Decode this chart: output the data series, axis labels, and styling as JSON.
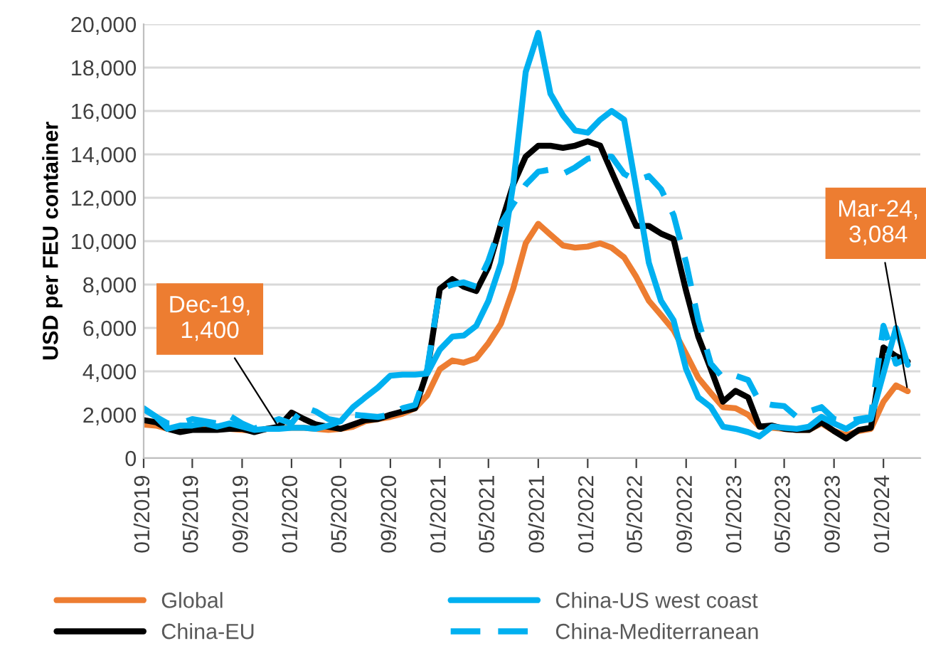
{
  "chart_data": {
    "type": "line",
    "ylabel": "USD per FEU container",
    "x": [
      "2019-01",
      "2019-02",
      "2019-03",
      "2019-04",
      "2019-05",
      "2019-06",
      "2019-07",
      "2019-08",
      "2019-09",
      "2019-10",
      "2019-11",
      "2019-12",
      "2020-01",
      "2020-02",
      "2020-03",
      "2020-04",
      "2020-05",
      "2020-06",
      "2020-07",
      "2020-08",
      "2020-09",
      "2020-10",
      "2020-11",
      "2020-12",
      "2021-01",
      "2021-02",
      "2021-03",
      "2021-04",
      "2021-05",
      "2021-06",
      "2021-07",
      "2021-08",
      "2021-09",
      "2021-10",
      "2021-11",
      "2021-12",
      "2022-01",
      "2022-02",
      "2022-03",
      "2022-04",
      "2022-05",
      "2022-06",
      "2022-07",
      "2022-08",
      "2022-09",
      "2022-10",
      "2022-11",
      "2022-12",
      "2023-01",
      "2023-02",
      "2023-03",
      "2023-04",
      "2023-05",
      "2023-06",
      "2023-07",
      "2023-08",
      "2023-09",
      "2023-10",
      "2023-11",
      "2023-12",
      "2024-01",
      "2024-02",
      "2024-03"
    ],
    "series": [
      {
        "name": "Global",
        "color": "#ed7d31",
        "line_style": "solid",
        "values": [
          1550,
          1500,
          1350,
          1300,
          1350,
          1350,
          1350,
          1350,
          1300,
          1250,
          1350,
          1400,
          1400,
          1400,
          1350,
          1300,
          1350,
          1450,
          1700,
          1800,
          1900,
          2050,
          2300,
          2900,
          4100,
          4500,
          4400,
          4600,
          5300,
          6200,
          7800,
          9900,
          10800,
          10300,
          9800,
          9700,
          9750,
          9900,
          9700,
          9250,
          8350,
          7250,
          6600,
          5900,
          4800,
          3700,
          3000,
          2350,
          2300,
          2000,
          1450,
          1400,
          1350,
          1300,
          1300,
          1600,
          1250,
          1050,
          1250,
          1350,
          2600,
          3350,
          3084
        ]
      },
      {
        "name": "China-EU",
        "color": "#000000",
        "line_style": "solid",
        "values": [
          1750,
          1650,
          1350,
          1200,
          1300,
          1300,
          1300,
          1350,
          1350,
          1200,
          1350,
          1450,
          2100,
          1800,
          1550,
          1450,
          1350,
          1550,
          1750,
          1800,
          2000,
          2150,
          2300,
          4000,
          7800,
          8250,
          7900,
          7700,
          8800,
          10800,
          12600,
          13900,
          14400,
          14400,
          14300,
          14400,
          14600,
          14400,
          13200,
          11900,
          10700,
          10700,
          10350,
          10100,
          7700,
          5600,
          4100,
          2600,
          3100,
          2800,
          1450,
          1500,
          1350,
          1300,
          1300,
          1650,
          1250,
          900,
          1300,
          1400,
          5100,
          4700,
          4450
        ]
      },
      {
        "name": "China-US west coast",
        "color": "#00b0f0",
        "line_style": "solid",
        "values": [
          2300,
          1900,
          1350,
          1500,
          1500,
          1600,
          1450,
          1600,
          1450,
          1300,
          1350,
          1350,
          1400,
          1400,
          1350,
          1500,
          1700,
          2350,
          2800,
          3250,
          3800,
          3850,
          3850,
          3900,
          5000,
          5600,
          5650,
          6100,
          7250,
          9000,
          12600,
          17800,
          19600,
          16800,
          15800,
          15100,
          15000,
          15600,
          16000,
          15600,
          12400,
          9000,
          7250,
          6350,
          4100,
          2800,
          2350,
          1450,
          1350,
          1200,
          1000,
          1450,
          1400,
          1350,
          1450,
          1900,
          1600,
          1350,
          1700,
          1800,
          3900,
          6000,
          4300
        ]
      },
      {
        "name": "China-Mediterranean",
        "color": "#00b0f0",
        "line_style": "dashed",
        "values": [
          2250,
          1900,
          1600,
          1600,
          1800,
          1700,
          1600,
          1950,
          1600,
          1350,
          1600,
          1800,
          1600,
          2350,
          2150,
          1800,
          1700,
          2000,
          1950,
          1900,
          2000,
          2300,
          2450,
          4100,
          7800,
          8000,
          8100,
          7900,
          9100,
          10800,
          11700,
          12600,
          13200,
          13300,
          13100,
          13400,
          13800,
          13900,
          13900,
          13100,
          12800,
          13000,
          12400,
          11200,
          9000,
          6350,
          4350,
          3700,
          3800,
          3600,
          2600,
          2450,
          2400,
          1900,
          2150,
          2350,
          1800,
          1700,
          1800,
          1900,
          6100,
          4350,
          4600
        ]
      }
    ],
    "xlim": [
      "2019-01",
      "2024-04"
    ],
    "xticks": [
      {
        "value": "2019-01",
        "label": "01/2019"
      },
      {
        "value": "2019-05",
        "label": "05/2019"
      },
      {
        "value": "2019-09",
        "label": "09/2019"
      },
      {
        "value": "2020-01",
        "label": "01/2020"
      },
      {
        "value": "2020-05",
        "label": "05/2020"
      },
      {
        "value": "2020-09",
        "label": "09/2020"
      },
      {
        "value": "2021-01",
        "label": "01/2021"
      },
      {
        "value": "2021-05",
        "label": "05/2021"
      },
      {
        "value": "2021-09",
        "label": "09/2021"
      },
      {
        "value": "2022-01",
        "label": "01/2022"
      },
      {
        "value": "2022-05",
        "label": "05/2022"
      },
      {
        "value": "2022-09",
        "label": "09/2022"
      },
      {
        "value": "2023-01",
        "label": "01/2023"
      },
      {
        "value": "2023-05",
        "label": "05/2023"
      },
      {
        "value": "2023-09",
        "label": "09/2023"
      },
      {
        "value": "2024-01",
        "label": "01/2024"
      }
    ],
    "ylim": [
      0,
      20000
    ],
    "yticks": [
      0,
      {
        "value": 2000,
        "label": "2,000"
      },
      {
        "value": 4000,
        "label": "4,000"
      },
      {
        "value": 6000,
        "label": "6,000"
      },
      {
        "value": 8000,
        "label": "8,000"
      },
      {
        "value": 10000,
        "label": "10,000"
      },
      {
        "value": 12000,
        "label": "12,000"
      },
      {
        "value": 14000,
        "label": "14,000"
      },
      {
        "value": 16000,
        "label": "16,000"
      },
      {
        "value": 18000,
        "label": "18,000"
      },
      {
        "value": 20000,
        "label": "20,000"
      }
    ],
    "grid": "y",
    "legend": "bottom",
    "annotations": [
      {
        "text": "Dec-19,\n1,400",
        "x": "2019-12",
        "y": 1400
      },
      {
        "text": "Mar-24,\n3,084",
        "x": "2024-03",
        "y": 3084
      }
    ]
  }
}
